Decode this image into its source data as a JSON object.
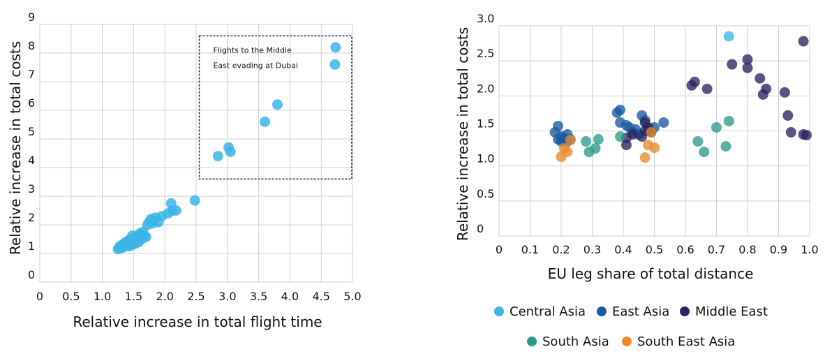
{
  "chart_data": [
    {
      "type": "scatter",
      "xlabel": "Relative increase in total flight time",
      "ylabel": "Relative increase in total costs",
      "xlim": [
        0,
        5
      ],
      "ylim": [
        0,
        9
      ],
      "x_ticks": [
        "0",
        "0.5",
        "1.0",
        "1.5",
        "2.0",
        "2.5",
        "3.0",
        "3.5",
        "4.0",
        "4.5",
        "5.0"
      ],
      "y_ticks": [
        "0",
        "1",
        "2",
        "3",
        "4",
        "5",
        "6",
        "7",
        "8",
        "9"
      ],
      "grid": true,
      "color": "#3cb4e8",
      "annotation": {
        "lines": [
          "Flights to the Middle",
          "East evading at Dubai"
        ],
        "box_x": [
          2.55,
          5.0
        ],
        "box_y": [
          3.6,
          8.6
        ]
      },
      "points": [
        [
          1.25,
          1.15
        ],
        [
          1.27,
          1.2
        ],
        [
          1.28,
          1.25
        ],
        [
          1.3,
          1.18
        ],
        [
          1.32,
          1.3
        ],
        [
          1.34,
          1.22
        ],
        [
          1.35,
          1.35
        ],
        [
          1.37,
          1.28
        ],
        [
          1.38,
          1.4
        ],
        [
          1.4,
          1.32
        ],
        [
          1.42,
          1.45
        ],
        [
          1.43,
          1.25
        ],
        [
          1.45,
          1.38
        ],
        [
          1.46,
          1.5
        ],
        [
          1.48,
          1.3
        ],
        [
          1.5,
          1.42
        ],
        [
          1.52,
          1.55
        ],
        [
          1.53,
          1.35
        ],
        [
          1.55,
          1.48
        ],
        [
          1.57,
          1.6
        ],
        [
          1.58,
          1.4
        ],
        [
          1.6,
          1.52
        ],
        [
          1.62,
          1.65
        ],
        [
          1.63,
          1.5
        ],
        [
          1.65,
          1.75
        ],
        [
          1.67,
          1.6
        ],
        [
          1.7,
          1.58
        ],
        [
          1.72,
          2.0
        ],
        [
          1.75,
          2.1
        ],
        [
          1.78,
          2.2
        ],
        [
          1.8,
          2.05
        ],
        [
          1.82,
          2.15
        ],
        [
          1.85,
          2.25
        ],
        [
          1.9,
          2.1
        ],
        [
          1.95,
          2.3
        ],
        [
          2.05,
          2.4
        ],
        [
          2.1,
          2.75
        ],
        [
          2.12,
          2.5
        ],
        [
          2.18,
          2.5
        ],
        [
          2.48,
          2.85
        ],
        [
          1.48,
          1.62
        ],
        [
          1.6,
          1.7
        ],
        [
          2.85,
          4.4
        ],
        [
          3.02,
          4.7
        ],
        [
          3.05,
          4.55
        ],
        [
          3.6,
          5.6
        ],
        [
          3.8,
          6.2
        ],
        [
          4.72,
          7.6
        ],
        [
          4.73,
          8.2
        ]
      ]
    },
    {
      "type": "scatter",
      "xlabel": "EU leg share of total distance",
      "ylabel": "Relative increase in total costs",
      "xlim": [
        0,
        1.0
      ],
      "ylim": [
        0,
        3.0
      ],
      "x_ticks": [
        "0",
        "0.1",
        "0.2",
        "0.3",
        "0.4",
        "0.5",
        "0.6",
        "0.7",
        "0.8",
        "0.9",
        "1.0"
      ],
      "y_ticks": [
        "0",
        "0.5",
        "1.0",
        "1.5",
        "2.0",
        "2.5",
        "3.0"
      ],
      "grid": true,
      "legend_position": "bottom",
      "series": [
        {
          "name": "Central Asia",
          "color": "#3cb4e8",
          "points": [
            [
              0.74,
              2.85
            ]
          ]
        },
        {
          "name": "East Asia",
          "color": "#1a5aa0",
          "points": [
            [
              0.18,
              1.48
            ],
            [
              0.19,
              1.57
            ],
            [
              0.19,
              1.38
            ],
            [
              0.2,
              1.42
            ],
            [
              0.2,
              1.35
            ],
            [
              0.21,
              1.4
            ],
            [
              0.22,
              1.45
            ],
            [
              0.22,
              1.35
            ],
            [
              0.23,
              1.38
            ],
            [
              0.38,
              1.76
            ],
            [
              0.39,
              1.8
            ],
            [
              0.39,
              1.62
            ],
            [
              0.41,
              1.58
            ],
            [
              0.42,
              1.55
            ],
            [
              0.43,
              1.48
            ],
            [
              0.44,
              1.52
            ],
            [
              0.45,
              1.45
            ],
            [
              0.46,
              1.72
            ],
            [
              0.47,
              1.65
            ],
            [
              0.48,
              1.5
            ],
            [
              0.5,
              1.55
            ],
            [
              0.53,
              1.62
            ]
          ]
        },
        {
          "name": "Middle East",
          "color": "#2a2560",
          "points": [
            [
              0.41,
              1.3
            ],
            [
              0.41,
              1.4
            ],
            [
              0.43,
              1.45
            ],
            [
              0.46,
              1.42
            ],
            [
              0.47,
              1.5
            ],
            [
              0.47,
              1.62
            ],
            [
              0.48,
              1.55
            ],
            [
              0.49,
              1.48
            ],
            [
              0.62,
              2.15
            ],
            [
              0.63,
              2.2
            ],
            [
              0.67,
              2.1
            ],
            [
              0.75,
              2.45
            ],
            [
              0.8,
              2.52
            ],
            [
              0.8,
              2.4
            ],
            [
              0.84,
              2.25
            ],
            [
              0.85,
              2.02
            ],
            [
              0.86,
              2.1
            ],
            [
              0.92,
              2.05
            ],
            [
              0.93,
              1.72
            ],
            [
              0.94,
              1.48
            ],
            [
              0.98,
              2.78
            ],
            [
              0.98,
              1.45
            ],
            [
              0.99,
              1.44
            ]
          ]
        },
        {
          "name": "South Asia",
          "color": "#2a9a8c",
          "points": [
            [
              0.28,
              1.35
            ],
            [
              0.29,
              1.2
            ],
            [
              0.31,
              1.25
            ],
            [
              0.32,
              1.38
            ],
            [
              0.39,
              1.42
            ],
            [
              0.64,
              1.35
            ],
            [
              0.66,
              1.2
            ],
            [
              0.7,
              1.55
            ],
            [
              0.73,
              1.28
            ],
            [
              0.74,
              1.64
            ]
          ]
        },
        {
          "name": "South East Asia",
          "color": "#e88a2a",
          "points": [
            [
              0.2,
              1.13
            ],
            [
              0.21,
              1.25
            ],
            [
              0.22,
              1.2
            ],
            [
              0.23,
              1.37
            ],
            [
              0.47,
              1.12
            ],
            [
              0.48,
              1.3
            ],
            [
              0.49,
              1.48
            ],
            [
              0.5,
              1.26
            ]
          ]
        }
      ]
    }
  ]
}
